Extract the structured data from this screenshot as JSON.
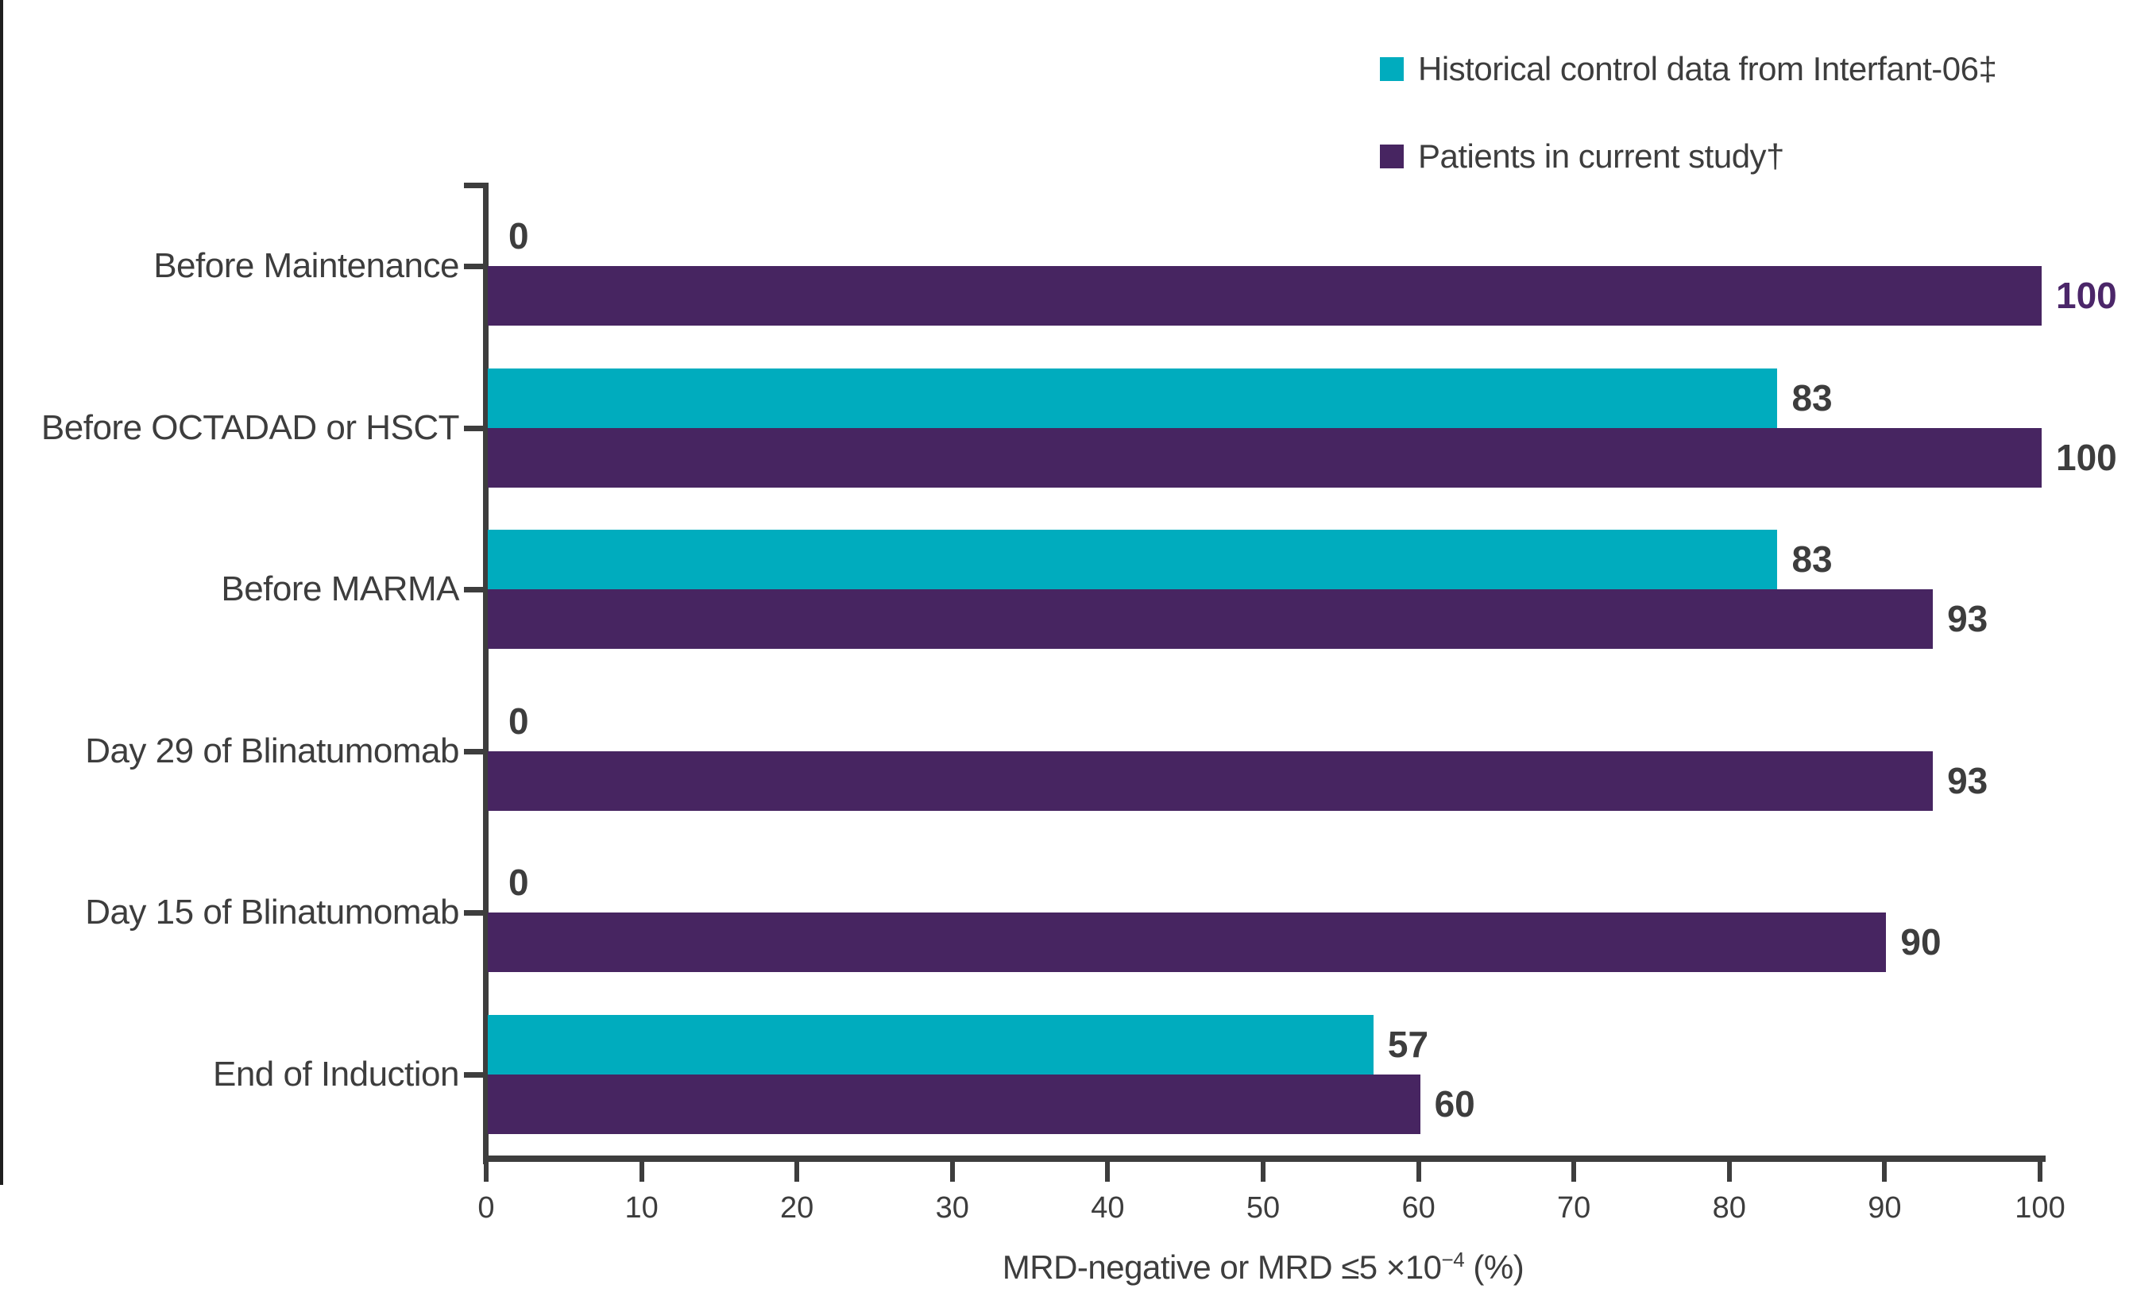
{
  "chart_data": {
    "type": "bar",
    "orientation": "horizontal",
    "categories": [
      "Before Maintenance",
      "Before OCTADAD or HSCT",
      "Before MARMA",
      "Day 29 of Blinatumomab",
      "Day 15 of Blinatumomab",
      "End of Induction"
    ],
    "series": [
      {
        "name": "Historical control data from Interfant-06‡",
        "color": "#00ACBE",
        "values": [
          0,
          83,
          83,
          0,
          0,
          57
        ]
      },
      {
        "name": "Patients in current study†",
        "color": "#472561",
        "values": [
          100,
          100,
          93,
          93,
          90,
          60
        ]
      }
    ],
    "value_labels_shown": true,
    "special_value_label": {
      "row": 0,
      "series": 1,
      "color": "#4B2669"
    },
    "value_label_color": "#3d3d3d",
    "axis_color": "#3d3d3d",
    "xlabel": "MRD-negative or MRD ≤5 ×10⁻⁴ (%)",
    "xlabel_parts": {
      "main": "MRD-negative or MRD ≤5 ×10",
      "sup": "−4",
      "tail": " (%)"
    },
    "xlim": [
      0,
      100
    ],
    "xticks": [
      0,
      10,
      20,
      30,
      40,
      50,
      60,
      70,
      80,
      90,
      100
    ],
    "grid": "off",
    "legend_position": "top-right"
  }
}
